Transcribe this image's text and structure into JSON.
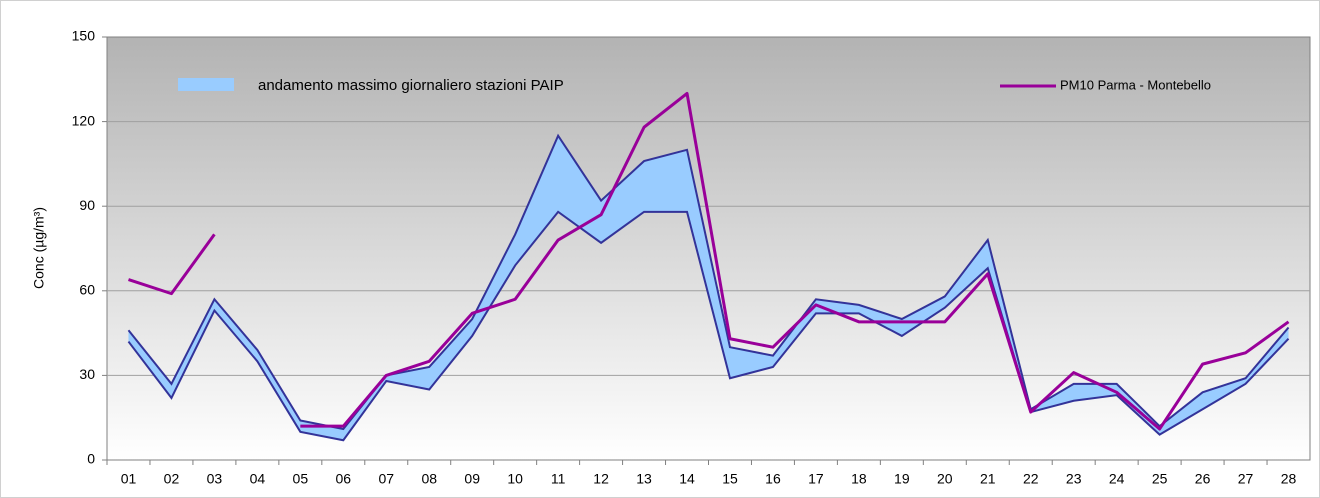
{
  "chart_data": {
    "type": "line",
    "ylabel": "Conc (µg/m³)",
    "categories": [
      "01",
      "02",
      "03",
      "04",
      "05",
      "06",
      "07",
      "08",
      "09",
      "10",
      "11",
      "12",
      "13",
      "14",
      "15",
      "16",
      "17",
      "18",
      "19",
      "20",
      "21",
      "22",
      "23",
      "24",
      "25",
      "26",
      "27",
      "28"
    ],
    "band": {
      "name": "andamento massimo  giornaliero stazioni PAIP",
      "color": "#99ccff",
      "edge_color": "#333399",
      "upper": [
        46,
        27,
        57,
        39,
        14,
        11,
        30,
        33,
        50,
        80,
        115,
        92,
        106,
        110,
        40,
        37,
        57,
        55,
        50,
        58,
        78,
        18,
        27,
        27,
        12,
        24,
        29,
        47
      ],
      "lower": [
        42,
        22,
        53,
        35,
        10,
        7,
        28,
        25,
        44,
        69,
        88,
        77,
        88,
        88,
        29,
        33,
        52,
        52,
        44,
        54,
        68,
        17,
        21,
        23,
        9,
        18,
        27,
        43
      ]
    },
    "series": [
      {
        "name": "PM10 Parma - Montebello",
        "color": "#990099",
        "values": [
          64,
          59,
          80,
          null,
          12,
          12,
          30,
          35,
          52,
          57,
          78,
          87,
          118,
          130,
          43,
          40,
          55,
          49,
          49,
          49,
          66,
          17,
          31,
          24,
          11,
          34,
          38,
          49
        ]
      }
    ],
    "ylim": [
      0,
      150
    ],
    "yticks": [
      0,
      30,
      60,
      90,
      120,
      150
    ],
    "grid": true
  }
}
